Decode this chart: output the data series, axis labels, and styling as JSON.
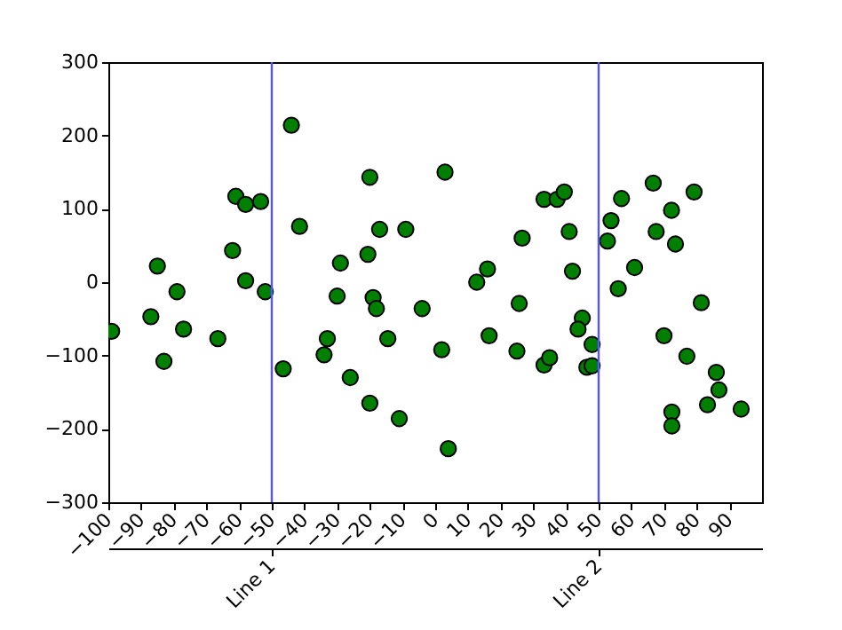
{
  "chart_data": {
    "type": "scatter",
    "x": [
      -99,
      -87,
      -85,
      -83,
      -79,
      -77,
      -66.5,
      -62,
      -61,
      -58,
      -58,
      -53.4,
      -52,
      -46.5,
      -44,
      -41.5,
      -29,
      -30,
      -33,
      -34,
      -26,
      -20,
      -20.6,
      -17,
      -19,
      -18,
      -14.5,
      -20,
      -11,
      -9,
      -4,
      3,
      2,
      4,
      12.7,
      16,
      16.5,
      25,
      25.7,
      26.6,
      33.3,
      37.3,
      39.5,
      41,
      42,
      33.3,
      35,
      45,
      43.7,
      48,
      46.4,
      48,
      52.7,
      53.8,
      57,
      56,
      61,
      66.7,
      67.6,
      72.3,
      73.5,
      79.2,
      81.4,
      70,
      77,
      72.4,
      72.4,
      86,
      86.8,
      83.3,
      93.6
    ],
    "values": [
      -67,
      -47,
      22,
      -108,
      -13,
      -64,
      -77,
      43,
      117,
      106,
      2,
      110,
      -13,
      -118,
      214,
      76,
      26,
      -19,
      -77,
      -99,
      -130,
      143,
      38,
      72,
      -21,
      -36,
      -77,
      -165,
      -186,
      72,
      -36,
      150,
      -92,
      -227,
      0,
      18,
      -73,
      -94,
      -29,
      60,
      113,
      113,
      123,
      69,
      15,
      -113,
      -103,
      -49,
      -64,
      -85,
      -116,
      -114,
      56,
      84,
      114,
      -9,
      20,
      135,
      69,
      98,
      52,
      123,
      -28,
      -73,
      -101,
      -177,
      -196,
      -123,
      -147,
      -167,
      -173
    ],
    "color": "#007f00",
    "marker": "circle",
    "xlim": [
      -100,
      100
    ],
    "xticks": [
      -100,
      -90,
      -80,
      -70,
      -60,
      -50,
      -40,
      -30,
      -20,
      -10,
      0,
      10,
      20,
      30,
      40,
      50,
      60,
      70,
      80,
      90
    ],
    "ylim": [
      -300,
      300
    ],
    "yticks": [
      -300,
      -200,
      -100,
      0,
      100,
      200,
      300
    ],
    "ref_lines": [
      {
        "axis": "x",
        "value": -50,
        "label": "Line 1",
        "color": "#5555ff"
      },
      {
        "axis": "x",
        "value": 50,
        "label": "Line 2",
        "color": "#5555ff"
      }
    ]
  }
}
